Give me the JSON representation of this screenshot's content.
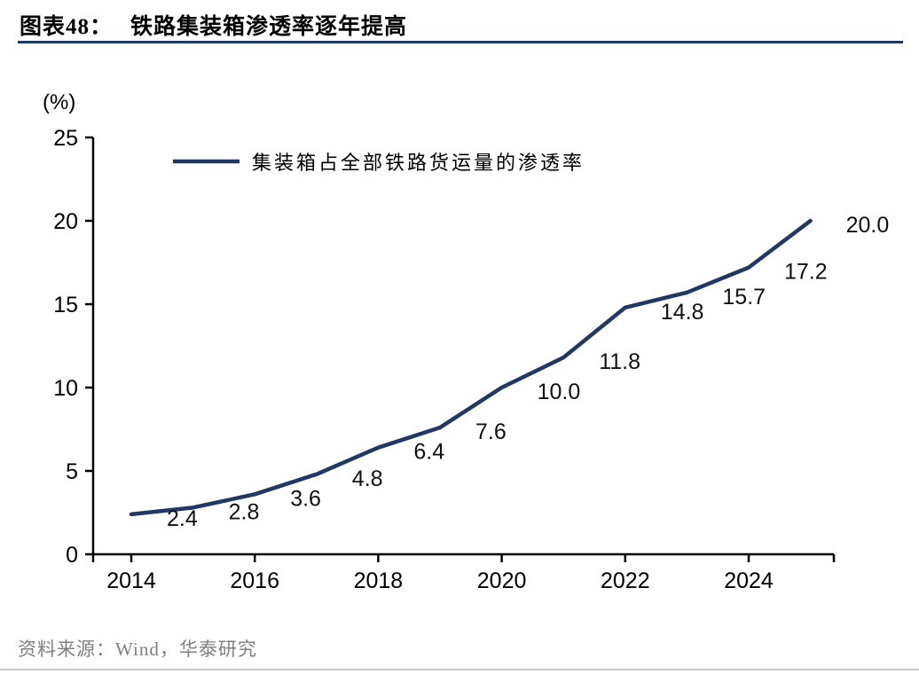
{
  "header": {
    "label": "图表48：",
    "title": "铁路集装箱渗透率逐年提高"
  },
  "chart_data": {
    "type": "line",
    "title": "铁路集装箱渗透率逐年提高",
    "ylabel": "(%)",
    "ylim": [
      0,
      25
    ],
    "yticks": [
      0,
      5,
      10,
      15,
      20,
      25
    ],
    "xticks": [
      2014,
      2016,
      2018,
      2020,
      2022,
      2024
    ],
    "grid": false,
    "legend_position": "top-left",
    "line_color": "#1f3864",
    "axis_color": "#000000",
    "series": [
      {
        "name": "集装箱占全部铁路货运量的渗透率",
        "x": [
          2014,
          2015,
          2016,
          2017,
          2018,
          2019,
          2020,
          2021,
          2022,
          2023,
          2024,
          2025
        ],
        "values": [
          2.4,
          2.8,
          3.6,
          4.8,
          6.4,
          7.6,
          10.0,
          11.8,
          14.8,
          15.7,
          17.2,
          20.0
        ],
        "labels": [
          "2.4",
          "2.8",
          "3.6",
          "4.8",
          "6.4",
          "7.6",
          "10.0",
          "11.8",
          "14.8",
          "15.7",
          "17.2",
          "20.0"
        ]
      }
    ]
  },
  "footer": {
    "source": "资料来源：Wind，华泰研究"
  }
}
